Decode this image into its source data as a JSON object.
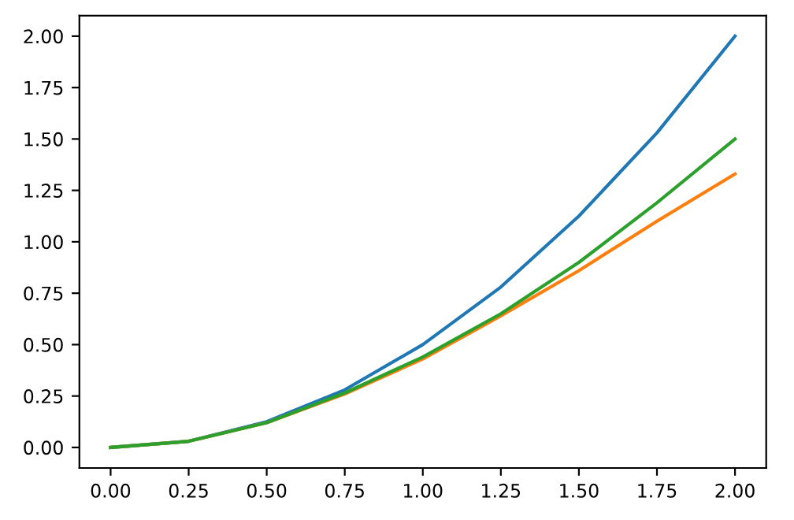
{
  "chart_data": {
    "type": "line",
    "x": [
      0,
      0.25,
      0.5,
      0.75,
      1.0,
      1.25,
      1.5,
      1.75,
      2.0
    ],
    "series": [
      {
        "color": "#1f77b4",
        "values": [
          0,
          0.03,
          0.125,
          0.28,
          0.5,
          0.78,
          1.125,
          1.53,
          2.0
        ]
      },
      {
        "color": "#ff7f0e",
        "values": [
          0,
          0.03,
          0.12,
          0.26,
          0.43,
          0.64,
          0.86,
          1.1,
          1.33
        ]
      },
      {
        "color": "#2ca02c",
        "values": [
          0,
          0.03,
          0.12,
          0.265,
          0.44,
          0.65,
          0.9,
          1.19,
          1.5
        ]
      }
    ],
    "xlim": [
      -0.1,
      2.1
    ],
    "ylim": [
      -0.1,
      2.1
    ],
    "xticks": [
      {
        "value": 0,
        "label": "0.00"
      },
      0.25,
      {
        "value": 0.5,
        "label": "0.50"
      },
      0.75,
      {
        "value": 1,
        "label": "1.00"
      },
      1.25,
      {
        "value": 1.5,
        "label": "1.50"
      },
      1.75,
      {
        "value": 2,
        "label": "2.00"
      }
    ],
    "yticks": [
      {
        "value": 0,
        "label": "0.00"
      },
      0.25,
      {
        "value": 0.5,
        "label": "0.50"
      },
      0.75,
      {
        "value": 1,
        "label": "1.00"
      },
      1.25,
      {
        "value": 1.5,
        "label": "1.50"
      },
      1.75,
      {
        "value": 2,
        "label": "2.00"
      }
    ],
    "grid": false
  }
}
